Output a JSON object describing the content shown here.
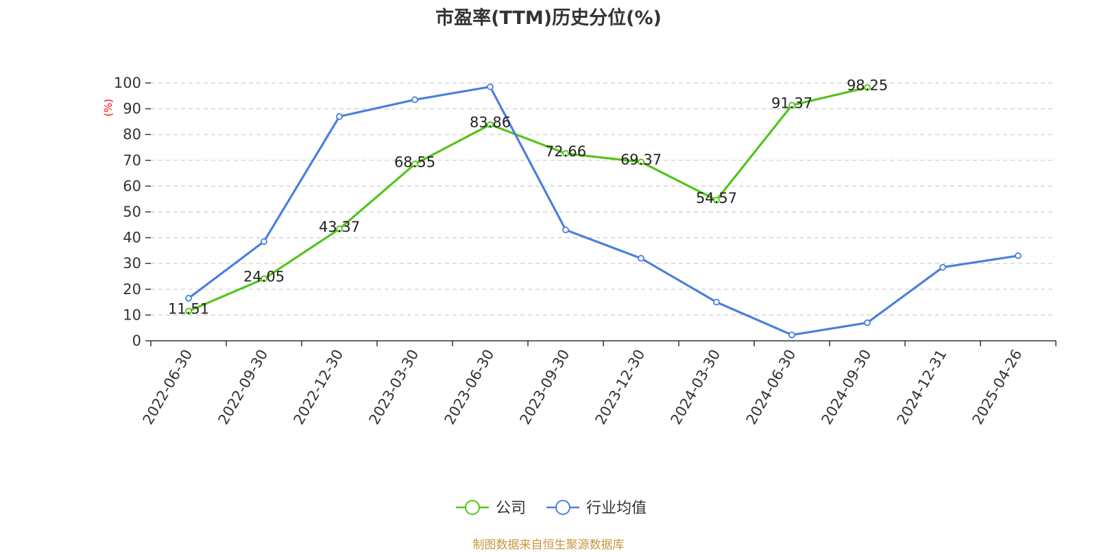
{
  "title": "市盈率(TTM)历史分位(%)",
  "source_note": "制图数据来自恒生聚源数据库",
  "chart_data": {
    "type": "line",
    "title": "市盈率(TTM)历史分位(%)",
    "ylabel": "(%)",
    "xlabel": "",
    "ylim": [
      0,
      100
    ],
    "yticks": [
      0,
      10,
      20,
      30,
      40,
      50,
      60,
      70,
      80,
      90,
      100
    ],
    "grid": true,
    "legend_position": "bottom-center",
    "categories": [
      "2022-06-30",
      "2022-09-30",
      "2022-12-30",
      "2023-03-30",
      "2023-06-30",
      "2023-09-30",
      "2023-12-30",
      "2024-03-30",
      "2024-06-30",
      "2024-09-30",
      "2024-12-31",
      "2025-04-26"
    ],
    "series": [
      {
        "name": "公司",
        "color": "#52c41a",
        "show_labels": true,
        "values": [
          11.51,
          24.05,
          43.37,
          68.55,
          83.86,
          72.66,
          69.37,
          54.57,
          91.37,
          98.25,
          null,
          null
        ],
        "labels": [
          "11.51",
          "24.05",
          "43.37",
          "68.55",
          "83.86",
          "72.66",
          "69.37",
          "54.57",
          "91.37",
          "98.25",
          "",
          ""
        ]
      },
      {
        "name": "行业均值",
        "color": "#4a7fdc",
        "show_labels": false,
        "values": [
          16.5,
          38.5,
          87,
          93.5,
          98.5,
          43,
          32,
          15,
          2.3,
          7,
          28.5,
          33
        ]
      }
    ],
    "colors": {
      "ylabel": "#ff0000",
      "grid": "#cccccc",
      "axis": "#333333"
    }
  }
}
